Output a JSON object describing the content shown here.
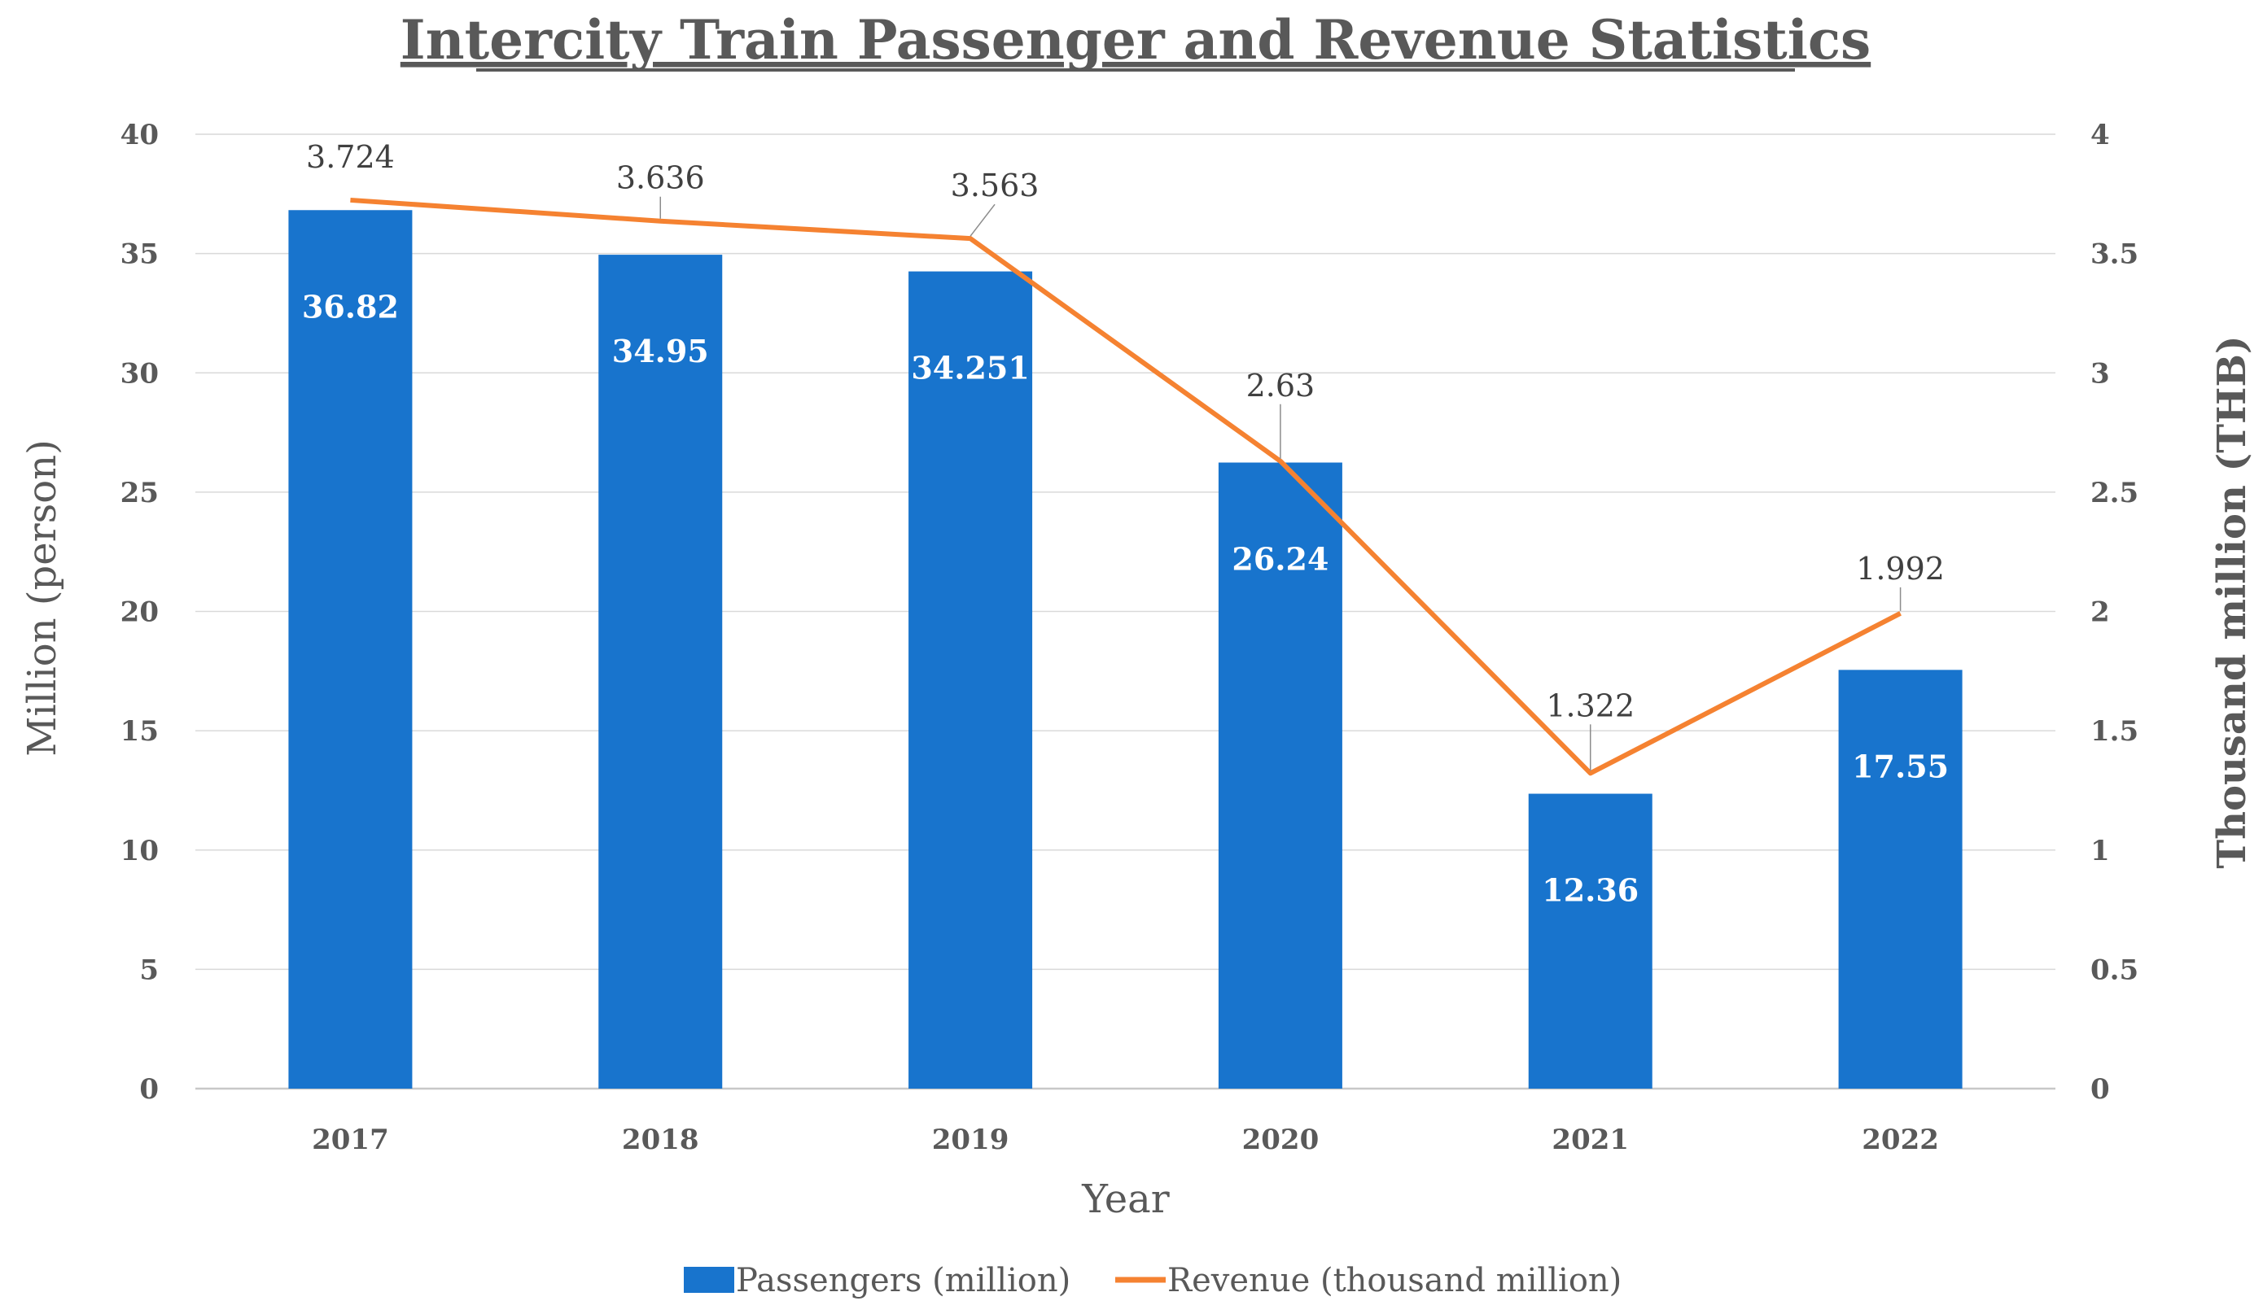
{
  "chart_data": {
    "type": "bar",
    "title": "Intercity Train Passenger and Revenue Statistics",
    "xlabel": "Year",
    "ylabel": "Million (person)",
    "y2label": "Thousand million (THB)",
    "categories": [
      "2017",
      "2018",
      "2019",
      "2020",
      "2021",
      "2022"
    ],
    "ylim": [
      0,
      40
    ],
    "y2lim": [
      0,
      4
    ],
    "yticks": [
      "0",
      "5",
      "10",
      "15",
      "20",
      "25",
      "30",
      "35",
      "40"
    ],
    "y2ticks": [
      "0",
      "0.5",
      "1",
      "1.5",
      "2",
      "2.5",
      "3",
      "3.5",
      "4"
    ],
    "grid": true,
    "legend_position": "bottom",
    "series": [
      {
        "name": "Passengers (million)",
        "type": "bar",
        "axis": "left",
        "color": "#1874CD",
        "values": [
          36.82,
          34.95,
          34.251,
          26.24,
          12.36,
          17.55
        ],
        "labels": [
          "36.82",
          "34.95",
          "34.251",
          "26.24",
          "12.36",
          "17.55"
        ]
      },
      {
        "name": "Revenue (thousand million)",
        "type": "line",
        "axis": "right",
        "color": "#F58231",
        "values": [
          3.724,
          3.636,
          3.563,
          2.63,
          1.322,
          1.992
        ],
        "labels": [
          "3.724",
          "3.636",
          "3.563",
          "2.63",
          "1.322",
          "1.992"
        ]
      }
    ]
  }
}
